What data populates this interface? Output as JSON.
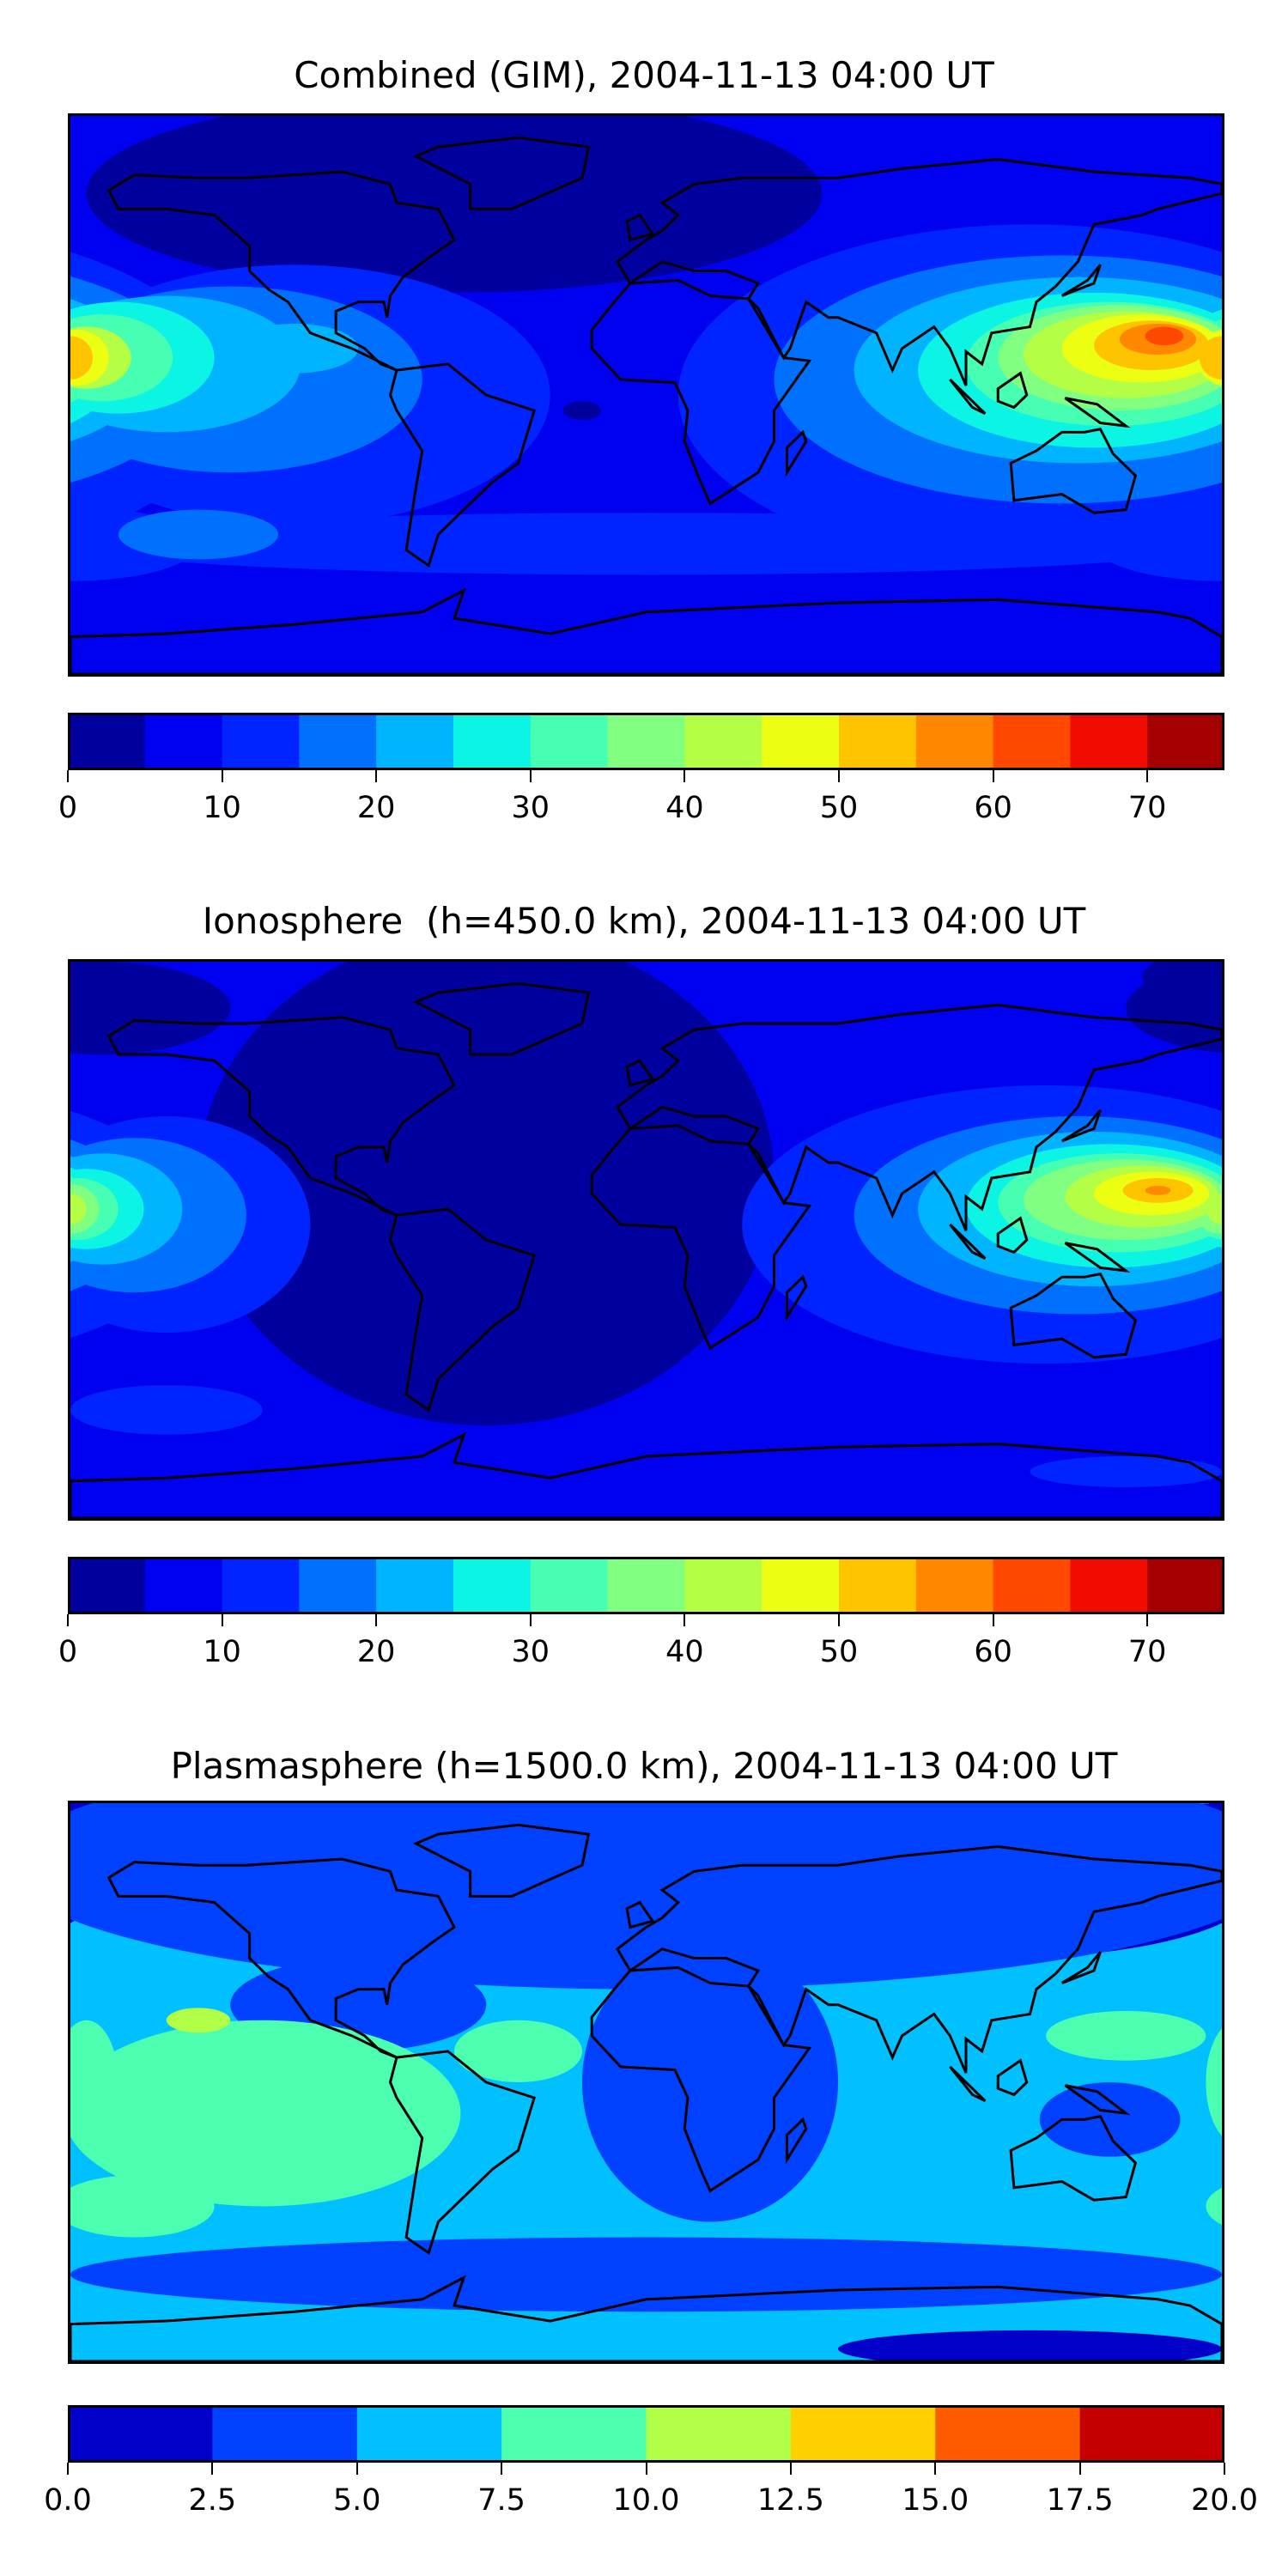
{
  "chart_data": [
    {
      "type": "heatmap",
      "title": "Combined (GIM), 2004-11-13 04:00 UT",
      "xlim": [
        -180,
        180
      ],
      "ylim": [
        -90,
        90
      ],
      "levels": [
        0,
        5,
        10,
        15,
        20,
        25,
        30,
        35,
        40,
        45,
        50,
        55,
        60,
        65,
        70,
        75
      ],
      "colors": [
        "#00009f",
        "#0000f0",
        "#0024ff",
        "#0070ff",
        "#00b4ff",
        "#0cf4e4",
        "#46ffb2",
        "#80ff80",
        "#b4ff46",
        "#ecff12",
        "#ffc400",
        "#ff8800",
        "#ff4800",
        "#f00c00",
        "#a40000"
      ],
      "colorbar_ticks": [
        "0",
        "10",
        "20",
        "30",
        "40",
        "50",
        "60",
        "70"
      ],
      "colorbar_tick_values": [
        0,
        10,
        20,
        30,
        40,
        50,
        60,
        70
      ],
      "background_level": 1,
      "features": [
        [
          -60,
          65,
          115,
          32,
          0
        ],
        [
          -20,
          -5,
          6,
          3,
          0
        ],
        [
          -110,
          0,
          80,
          42,
          2
        ],
        [
          120,
          0,
          110,
          55,
          2
        ],
        [
          0,
          -48,
          180,
          10,
          2
        ],
        [
          -180,
          -48,
          40,
          12,
          2
        ],
        [
          -130,
          5,
          60,
          30,
          3
        ],
        [
          130,
          5,
          90,
          40,
          3
        ],
        [
          -140,
          -45,
          25,
          8,
          3
        ],
        [
          -150,
          10,
          42,
          22,
          4
        ],
        [
          135,
          8,
          70,
          30,
          4
        ],
        [
          -110,
          15,
          20,
          8,
          4
        ],
        [
          140,
          8,
          55,
          25,
          5
        ],
        [
          -165,
          12,
          30,
          18,
          5
        ],
        [
          145,
          10,
          45,
          20,
          6
        ],
        [
          -170,
          12,
          22,
          14,
          6
        ],
        [
          148,
          12,
          38,
          17,
          7
        ],
        [
          150,
          13,
          32,
          14,
          8
        ],
        [
          -175,
          12,
          14,
          10,
          8
        ],
        [
          155,
          15,
          25,
          11,
          9
        ],
        [
          -178,
          12,
          10,
          9,
          9
        ],
        [
          158,
          16,
          18,
          8,
          10
        ],
        [
          -180,
          12,
          7,
          7,
          10
        ],
        [
          160,
          18,
          12,
          5,
          11
        ],
        [
          162,
          19,
          6,
          3,
          12
        ]
      ]
    },
    {
      "type": "heatmap",
      "title": "Ionosphere  (h=450.0 km), 2004-11-13 04:00 UT",
      "xlim": [
        -180,
        180
      ],
      "ylim": [
        -90,
        90
      ],
      "levels": [
        0,
        5,
        10,
        15,
        20,
        25,
        30,
        35,
        40,
        45,
        50,
        55,
        60,
        65,
        70,
        75
      ],
      "colors": [
        "#00009f",
        "#0000f0",
        "#0024ff",
        "#0070ff",
        "#00b4ff",
        "#0cf4e4",
        "#46ffb2",
        "#80ff80",
        "#b4ff46",
        "#ecff12",
        "#ffc400",
        "#ff8800",
        "#ff4800",
        "#f00c00",
        "#a40000"
      ],
      "colorbar_ticks": [
        "0",
        "10",
        "20",
        "30",
        "40",
        "50",
        "60",
        "70"
      ],
      "colorbar_tick_values": [
        0,
        10,
        20,
        30,
        40,
        50,
        60,
        70
      ],
      "background_level": 1,
      "features": [
        [
          -50,
          20,
          90,
          80,
          0
        ],
        [
          -170,
          75,
          40,
          15,
          0
        ],
        [
          175,
          85,
          20,
          8,
          0
        ],
        [
          -150,
          5,
          45,
          35,
          2
        ],
        [
          125,
          5,
          95,
          45,
          2
        ],
        [
          -150,
          -55,
          30,
          8,
          2
        ],
        [
          150,
          -75,
          30,
          5,
          2
        ],
        [
          -160,
          8,
          35,
          25,
          3
        ],
        [
          135,
          8,
          70,
          32,
          3
        ],
        [
          -170,
          10,
          25,
          18,
          4
        ],
        [
          140,
          10,
          55,
          25,
          4
        ],
        [
          -175,
          10,
          18,
          13,
          5
        ],
        [
          145,
          11,
          45,
          20,
          5
        ],
        [
          -178,
          10,
          13,
          10,
          6
        ],
        [
          148,
          12,
          38,
          16,
          6
        ],
        [
          -180,
          10,
          9,
          8,
          7
        ],
        [
          150,
          13,
          32,
          13,
          7
        ],
        [
          -180,
          10,
          5,
          5,
          8
        ],
        [
          155,
          14,
          24,
          10,
          8
        ],
        [
          158,
          15,
          18,
          7,
          9
        ],
        [
          160,
          16,
          11,
          4,
          10
        ],
        [
          160,
          16,
          4,
          1.5,
          11
        ]
      ]
    },
    {
      "type": "heatmap",
      "title": "Plasmasphere (h=1500.0 km), 2004-11-13 04:00 UT",
      "xlim": [
        -180,
        180
      ],
      "ylim": [
        -90,
        90
      ],
      "levels": [
        0,
        2.5,
        5,
        7.5,
        10,
        12.5,
        15,
        17.5,
        20
      ],
      "colors": [
        "#0000c8",
        "#0040ff",
        "#00c0ff",
        "#4cffb0",
        "#b0ff46",
        "#ffd000",
        "#ff5c00",
        "#c40000"
      ],
      "colorbar_ticks": [
        "0.0",
        "2.5",
        "5.0",
        "7.5",
        "10.0",
        "12.5",
        "15.0",
        "17.5",
        "20.0"
      ],
      "colorbar_tick_values": [
        0,
        2.5,
        5,
        7.5,
        10,
        12.5,
        15,
        17.5,
        20
      ],
      "background_level": 2,
      "features": [
        [
          0,
          70,
          200,
          40,
          1
        ],
        [
          20,
          0,
          40,
          45,
          1
        ],
        [
          0,
          -62,
          180,
          12,
          1
        ],
        [
          145,
          -12,
          22,
          12,
          1
        ],
        [
          -90,
          25,
          40,
          15,
          1
        ],
        [
          -40,
          75,
          170,
          28,
          0
        ],
        [
          110,
          62,
          80,
          22,
          0
        ],
        [
          -180,
          75,
          40,
          15,
          0
        ],
        [
          120,
          -86,
          60,
          6,
          0
        ],
        [
          -120,
          -10,
          62,
          30,
          3
        ],
        [
          -160,
          -40,
          25,
          10,
          3
        ],
        [
          -40,
          10,
          20,
          10,
          3
        ],
        [
          150,
          15,
          25,
          8,
          3
        ],
        [
          -175,
          0,
          10,
          20,
          3
        ],
        [
          -140,
          20,
          10,
          4,
          4
        ]
      ]
    }
  ]
}
